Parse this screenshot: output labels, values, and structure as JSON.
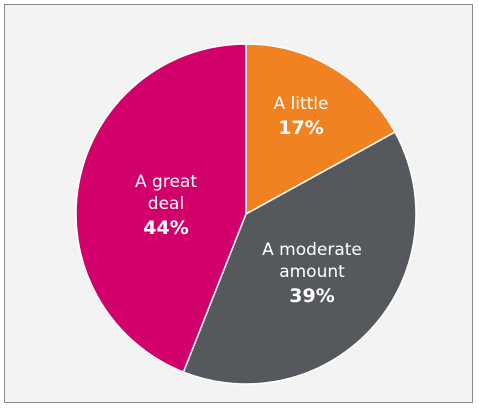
{
  "chart_data": {
    "type": "pie",
    "categories": [
      "A little",
      "A moderate amount",
      "A great deal"
    ],
    "values": [
      17,
      39,
      44
    ],
    "label_lines": [
      [
        "A little"
      ],
      [
        "A moderate",
        "amount"
      ],
      [
        "A great",
        "deal"
      ]
    ],
    "value_labels": [
      "17%",
      "39%",
      "44%"
    ],
    "colors": [
      "#f08221",
      "#55585c",
      "#d1006b"
    ],
    "start_angle_deg": 0,
    "direction": "clockwise",
    "title": "",
    "legend": "none"
  },
  "style": {
    "frame_background": "#f3f3f3",
    "frame_border": "#8a8a8a",
    "slice_border": "#ffffff",
    "label_color": "#ffffff"
  }
}
